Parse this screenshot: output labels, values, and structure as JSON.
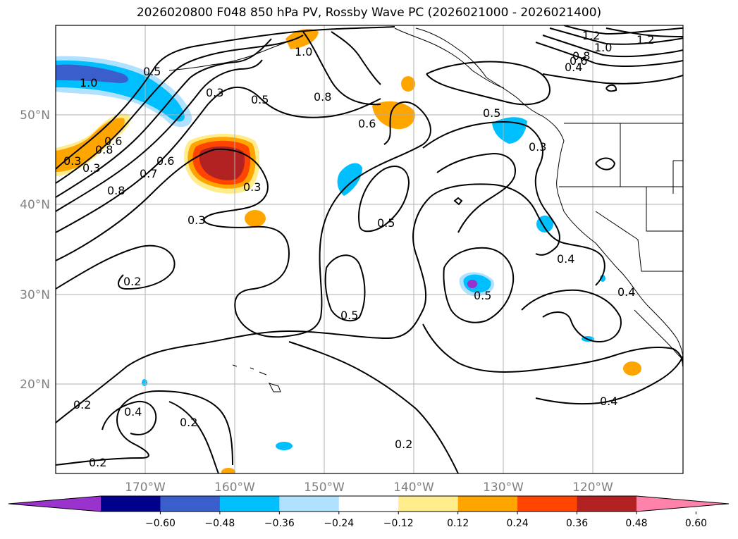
{
  "title": "2026020800 F048 850 hPa PV, Rossby Wave PC (2026021000 - 2026021400)",
  "lat_labels": [
    "50°N",
    "40°N",
    "30°N",
    "20°N"
  ],
  "lon_labels": [
    "170°W",
    "160°W",
    "150°W",
    "140°W",
    "130°W",
    "120°W"
  ],
  "contour_labels": [
    "1.2",
    "1.2",
    "1.0",
    "1.0",
    "0.8",
    "0.6",
    "0.4",
    "1.0",
    "0.5",
    "0.3",
    "0.5",
    "0.8",
    "0.6",
    "0.5",
    "0.3",
    "0.3",
    "0.6",
    "0.7",
    "0.8",
    "0.3",
    "0.3",
    "0.8",
    "0.6",
    "0.5",
    "0.3",
    "0.2",
    "0.5",
    "0.5",
    "0.4",
    "0.4",
    "0.2",
    "0.4",
    "0.2",
    "0.2",
    "0.2",
    "0.4"
  ],
  "colorbar": {
    "ticks": [
      "−0.60",
      "−0.48",
      "−0.36",
      "−0.24",
      "−0.12",
      "0.12",
      "0.24",
      "0.36",
      "0.48",
      "0.60"
    ],
    "colors": [
      "#9a32cd",
      "#00008b",
      "#3a5fcd",
      "#00bfff",
      "#b0e2ff",
      "#ffffff",
      "#ffec8b",
      "#ffa500",
      "#ff4500",
      "#b22222",
      "#ff82ab"
    ]
  },
  "colors": {
    "map_border": "#000000",
    "grid": "#b0b0b0",
    "contour": "#000000",
    "neg_fill": "#00bfff",
    "pos_fill": "#ffa500"
  }
}
